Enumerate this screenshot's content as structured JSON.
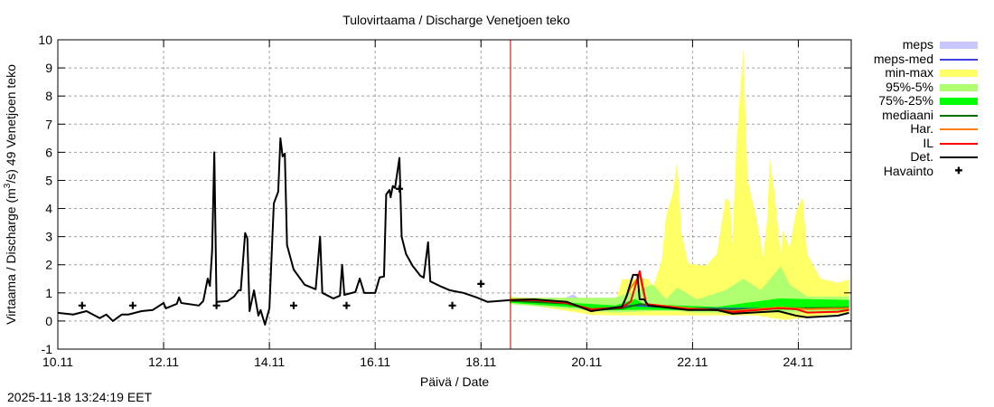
{
  "chart_data": {
    "type": "area",
    "title": "Tulovirtaama / Discharge  Venetjoen teko",
    "xlabel": "Päivä / Date",
    "ylabel": {
      "pre": "Virtaama / Discharge (m",
      "sup": "3",
      "post": "/s)  49 Venetjoen teko"
    },
    "xlim": [
      "2025-11-10 00:00",
      "2025-11-25 00:00"
    ],
    "ylim": [
      -1,
      10
    ],
    "x_ticks": [
      {
        "t": "2025-11-10 00:00",
        "label": "10.11"
      },
      {
        "t": "2025-11-12 00:00",
        "label": "12.11"
      },
      {
        "t": "2025-11-14 00:00",
        "label": "14.11"
      },
      {
        "t": "2025-11-16 00:00",
        "label": "16.11"
      },
      {
        "t": "2025-11-18 00:00",
        "label": "18.11"
      },
      {
        "t": "2025-11-20 00:00",
        "label": "20.11"
      },
      {
        "t": "2025-11-22 00:00",
        "label": "22.11"
      },
      {
        "t": "2025-11-24 00:00",
        "label": "24.11"
      }
    ],
    "y_ticks": [
      -1,
      0,
      1,
      2,
      3,
      4,
      5,
      6,
      7,
      8,
      9,
      10
    ],
    "grid": true,
    "legend_placement": "outside-right",
    "forecast_start": "2025-11-18 13:24",
    "bands": [
      {
        "name": "meps",
        "color": "#c8c8ff",
        "points": [
          [
            "2025-11-18 13:00",
            0.6,
            0.8
          ],
          [
            "2025-11-19 12:00",
            0.55,
            0.75
          ],
          [
            "2025-11-19 18:00",
            0.5,
            0.95
          ],
          [
            "2025-11-20 02:00",
            0.3,
            0.45
          ],
          [
            "2025-11-20 12:00",
            0.3,
            0.65
          ],
          [
            "2025-11-20 20:00",
            0.2,
            0.7
          ],
          [
            "2025-11-21 02:00",
            0.4,
            0.6
          ],
          [
            "2025-11-21 12:00",
            0.4,
            0.55
          ]
        ]
      },
      {
        "name": "min-max",
        "color": "#ffff66",
        "points": [
          [
            "2025-11-18 13:00",
            0.68,
            0.87
          ],
          [
            "2025-11-20 02:00",
            0.22,
            0.6
          ],
          [
            "2025-11-20 13:00",
            0.2,
            0.68
          ],
          [
            "2025-11-20 16:00",
            0.2,
            1.48
          ],
          [
            "2025-11-21 04:00",
            0.2,
            1.51
          ],
          [
            "2025-11-21 06:00",
            0.2,
            1.19
          ],
          [
            "2025-11-21 10:00",
            0.2,
            2.15
          ],
          [
            "2025-11-21 12:00",
            0.2,
            3.76
          ],
          [
            "2025-11-21 15:00",
            0.2,
            4.53
          ],
          [
            "2025-11-21 17:00",
            0.2,
            5.69
          ],
          [
            "2025-11-21 19:00",
            0.2,
            3.11
          ],
          [
            "2025-11-21 22:00",
            0.2,
            2.05
          ],
          [
            "2025-11-22 06:00",
            0.2,
            1.96
          ],
          [
            "2025-11-22 11:00",
            0.2,
            2.38
          ],
          [
            "2025-11-22 15:00",
            0.2,
            4.4
          ],
          [
            "2025-11-22 17:00",
            0.2,
            4.21
          ],
          [
            "2025-11-22 18:00",
            0.2,
            2.7
          ],
          [
            "2025-11-22 20:00",
            0.2,
            6.4
          ],
          [
            "2025-11-22 23:00",
            0.2,
            9.68
          ],
          [
            "2025-11-23 01:00",
            0.2,
            5.0
          ],
          [
            "2025-11-23 05:00",
            0.2,
            3.66
          ],
          [
            "2025-11-23 08:00",
            0.15,
            2.28
          ],
          [
            "2025-11-23 10:00",
            0.15,
            3.66
          ],
          [
            "2025-11-23 11:00",
            0.1,
            5.85
          ],
          [
            "2025-11-23 13:00",
            0.1,
            4.66
          ],
          [
            "2025-11-23 16:00",
            0.05,
            2.38
          ],
          [
            "2025-11-23 17:00",
            0.05,
            3.22
          ],
          [
            "2025-11-23 20:00",
            0.05,
            2.6
          ],
          [
            "2025-11-23 23:00",
            0.1,
            3.9
          ],
          [
            "2025-11-24 02:00",
            0.1,
            4.4
          ],
          [
            "2025-11-24 04:00",
            0.15,
            2.38
          ],
          [
            "2025-11-24 10:00",
            0.2,
            1.51
          ],
          [
            "2025-11-24 18:00",
            0.25,
            1.35
          ],
          [
            "2025-11-24 23:00",
            0.3,
            1.48
          ]
        ]
      },
      {
        "name": "95%-5%",
        "color": "#b0ff70",
        "points": [
          [
            "2025-11-18 13:00",
            0.6,
            0.83
          ],
          [
            "2025-11-20 13:00",
            0.3,
            0.83
          ],
          [
            "2025-11-21 06:00",
            0.35,
            1.3
          ],
          [
            "2025-11-21 12:00",
            0.35,
            0.77
          ],
          [
            "2025-11-21 17:00",
            0.35,
            1.19
          ],
          [
            "2025-11-22 02:00",
            0.3,
            0.77
          ],
          [
            "2025-11-22 15:00",
            0.3,
            1.1
          ],
          [
            "2025-11-22 23:00",
            0.3,
            1.5
          ],
          [
            "2025-11-23 07:00",
            0.3,
            1.1
          ],
          [
            "2025-11-23 16:00",
            0.3,
            1.95
          ],
          [
            "2025-11-23 20:00",
            0.3,
            1.3
          ],
          [
            "2025-11-24 04:00",
            0.3,
            0.87
          ],
          [
            "2025-11-24 23:00",
            0.35,
            0.87
          ]
        ]
      },
      {
        "name": "75%-25%",
        "color": "#00ff00",
        "points": [
          [
            "2025-11-18 13:00",
            0.65,
            0.78
          ],
          [
            "2025-11-20 13:00",
            0.38,
            0.55
          ],
          [
            "2025-11-20 22:00",
            0.4,
            0.78
          ],
          [
            "2025-11-21 02:00",
            0.4,
            0.6
          ],
          [
            "2025-11-22 11:00",
            0.38,
            0.5
          ],
          [
            "2025-11-23 15:00",
            0.4,
            0.8
          ],
          [
            "2025-11-24 23:00",
            0.4,
            0.75
          ]
        ]
      }
    ],
    "series": [
      {
        "name": "meps-med",
        "color": "#4040e0",
        "width": 1.5,
        "points": [
          [
            "2025-11-18 13:00",
            0.74
          ],
          [
            "2025-11-19 15:00",
            0.65
          ],
          [
            "2025-11-20 02:00",
            0.4
          ],
          [
            "2025-11-20 20:00",
            0.55
          ],
          [
            "2025-11-21 22:00",
            0.45
          ],
          [
            "2025-11-23 15:00",
            0.44
          ],
          [
            "2025-11-24 23:00",
            0.46
          ]
        ]
      },
      {
        "name": "mediaani",
        "color": "#007000",
        "width": 2,
        "points": [
          [
            "2025-11-18 13:00",
            0.72
          ],
          [
            "2025-11-19 15:00",
            0.62
          ],
          [
            "2025-11-20 02:00",
            0.38
          ],
          [
            "2025-11-20 16:00",
            0.45
          ],
          [
            "2025-11-21 00:00",
            0.6
          ],
          [
            "2025-11-21 22:00",
            0.45
          ],
          [
            "2025-11-22 18:00",
            0.4
          ],
          [
            "2025-11-23 15:00",
            0.45
          ],
          [
            "2025-11-24 23:00",
            0.47
          ]
        ]
      },
      {
        "name": "Har.",
        "color": "#ff8000",
        "width": 2,
        "points": [
          [
            "2025-11-18 13:00",
            0.76
          ],
          [
            "2025-11-19 00:00",
            0.77
          ],
          [
            "2025-11-19 15:00",
            0.64
          ],
          [
            "2025-11-20 02:00",
            0.38
          ],
          [
            "2025-11-20 16:00",
            0.5
          ],
          [
            "2025-11-20 20:00",
            1.2
          ],
          [
            "2025-11-21 00:00",
            1.6
          ],
          [
            "2025-11-21 03:00",
            0.6
          ],
          [
            "2025-11-21 22:00",
            0.45
          ],
          [
            "2025-11-22 18:00",
            0.35
          ],
          [
            "2025-11-23 15:00",
            0.48
          ],
          [
            "2025-11-24 04:00",
            0.42
          ],
          [
            "2025-11-24 23:00",
            0.45
          ]
        ]
      },
      {
        "name": "IL",
        "color": "#ff0000",
        "width": 2,
        "points": [
          [
            "2025-11-18 13:00",
            0.74
          ],
          [
            "2025-11-19 00:00",
            0.74
          ],
          [
            "2025-11-19 15:00",
            0.64
          ],
          [
            "2025-11-20 02:00",
            0.42
          ],
          [
            "2025-11-20 16:00",
            0.48
          ],
          [
            "2025-11-20 20:00",
            0.7
          ],
          [
            "2025-11-21 00:00",
            1.77
          ],
          [
            "2025-11-21 03:00",
            0.6
          ],
          [
            "2025-11-21 22:00",
            0.42
          ],
          [
            "2025-11-22 11:00",
            0.39
          ],
          [
            "2025-11-22 18:00",
            0.32
          ],
          [
            "2025-11-23 15:00",
            0.45
          ],
          [
            "2025-11-23 23:00",
            0.42
          ],
          [
            "2025-11-24 04:00",
            0.3
          ],
          [
            "2025-11-24 18:00",
            0.33
          ],
          [
            "2025-11-24 23:00",
            0.39
          ]
        ]
      },
      {
        "name": "Det.",
        "color": "#000000",
        "width": 2,
        "points": [
          [
            "2025-11-10 00:00",
            0.29
          ],
          [
            "2025-11-10 07:00",
            0.23
          ],
          [
            "2025-11-10 13:00",
            0.35
          ],
          [
            "2025-11-10 19:00",
            0.1
          ],
          [
            "2025-11-10 22:00",
            0.23
          ],
          [
            "2025-11-11 01:00",
            0.0
          ],
          [
            "2025-11-11 05:00",
            0.23
          ],
          [
            "2025-11-11 08:00",
            0.23
          ],
          [
            "2025-11-11 14:00",
            0.35
          ],
          [
            "2025-11-11 19:00",
            0.39
          ],
          [
            "2025-11-12 00:00",
            0.64
          ],
          [
            "2025-11-12 01:00",
            0.45
          ],
          [
            "2025-11-12 06:00",
            0.61
          ],
          [
            "2025-11-12 07:00",
            0.84
          ],
          [
            "2025-11-12 08:00",
            0.64
          ],
          [
            "2025-11-12 16:00",
            0.55
          ],
          [
            "2025-11-12 18:00",
            0.71
          ],
          [
            "2025-11-12 20:00",
            1.51
          ],
          [
            "2025-11-12 21:00",
            1.25
          ],
          [
            "2025-11-12 22:00",
            2.48
          ],
          [
            "2025-11-12 23:00",
            6.0
          ],
          [
            "2025-11-13 00:00",
            0.68
          ],
          [
            "2025-11-13 05:00",
            0.71
          ],
          [
            "2025-11-13 08:00",
            0.87
          ],
          [
            "2025-11-13 10:00",
            1.09
          ],
          [
            "2025-11-13 11:00",
            1.09
          ],
          [
            "2025-11-13 13:00",
            3.13
          ],
          [
            "2025-11-13 14:00",
            2.93
          ],
          [
            "2025-11-13 15:00",
            0.35
          ],
          [
            "2025-11-13 17:00",
            1.09
          ],
          [
            "2025-11-13 19:00",
            0.19
          ],
          [
            "2025-11-13 20:00",
            0.39
          ],
          [
            "2025-11-13 22:00",
            -0.13
          ],
          [
            "2025-11-14 00:00",
            0.45
          ],
          [
            "2025-11-14 02:00",
            4.18
          ],
          [
            "2025-11-14 04:00",
            4.6
          ],
          [
            "2025-11-14 05:00",
            6.5
          ],
          [
            "2025-11-14 06:00",
            5.85
          ],
          [
            "2025-11-14 07:00",
            5.95
          ],
          [
            "2025-11-14 08:00",
            2.7
          ],
          [
            "2025-11-14 11:00",
            1.83
          ],
          [
            "2025-11-14 16:00",
            1.29
          ],
          [
            "2025-11-14 21:00",
            1.13
          ],
          [
            "2025-11-14 23:00",
            3.0
          ],
          [
            "2025-11-15 00:00",
            1.0
          ],
          [
            "2025-11-15 05:00",
            0.8
          ],
          [
            "2025-11-15 08:00",
            0.9
          ],
          [
            "2025-11-15 09:00",
            2.0
          ],
          [
            "2025-11-15 10:00",
            0.93
          ],
          [
            "2025-11-15 15:00",
            1.03
          ],
          [
            "2025-11-15 17:00",
            1.51
          ],
          [
            "2025-11-15 19:00",
            1.0
          ],
          [
            "2025-11-16 00:00",
            1.0
          ],
          [
            "2025-11-16 02:00",
            1.55
          ],
          [
            "2025-11-16 04:00",
            1.58
          ],
          [
            "2025-11-16 05:00",
            4.5
          ],
          [
            "2025-11-16 06:30",
            4.66
          ],
          [
            "2025-11-16 07:00",
            4.4
          ],
          [
            "2025-11-16 08:00",
            4.8
          ],
          [
            "2025-11-16 09:00",
            4.73
          ],
          [
            "2025-11-16 11:00",
            5.8
          ],
          [
            "2025-11-16 12:00",
            3.0
          ],
          [
            "2025-11-16 14:00",
            2.38
          ],
          [
            "2025-11-16 17:00",
            1.96
          ],
          [
            "2025-11-16 20:30",
            1.61
          ],
          [
            "2025-11-16 22:00",
            1.54
          ],
          [
            "2025-11-17 00:00",
            2.8
          ],
          [
            "2025-11-17 01:00",
            1.41
          ],
          [
            "2025-11-17 06:00",
            1.22
          ],
          [
            "2025-11-17 10:00",
            1.09
          ],
          [
            "2025-11-17 16:00",
            1.0
          ],
          [
            "2025-11-17 22:00",
            0.84
          ],
          [
            "2025-11-18 03:00",
            0.68
          ],
          [
            "2025-11-18 13:00",
            0.74
          ],
          [
            "2025-11-19 00:00",
            0.77
          ],
          [
            "2025-11-19 15:00",
            0.68
          ],
          [
            "2025-11-20 02:00",
            0.35
          ],
          [
            "2025-11-20 16:00",
            0.51
          ],
          [
            "2025-11-20 18:00",
            0.87
          ],
          [
            "2025-11-20 21:00",
            1.64
          ],
          [
            "2025-11-20 23:00",
            1.64
          ],
          [
            "2025-11-21 00:00",
            0.77
          ],
          [
            "2025-11-21 02:00",
            0.77
          ],
          [
            "2025-11-21 04:00",
            0.55
          ],
          [
            "2025-11-21 22:00",
            0.39
          ],
          [
            "2025-11-22 11:00",
            0.39
          ],
          [
            "2025-11-22 18:00",
            0.26
          ],
          [
            "2025-11-23 15:00",
            0.35
          ],
          [
            "2025-11-23 23:00",
            0.19
          ],
          [
            "2025-11-24 04:00",
            0.13
          ],
          [
            "2025-11-24 18:00",
            0.19
          ],
          [
            "2025-11-24 23:00",
            0.29
          ]
        ]
      }
    ],
    "observations": {
      "name": "Havainto",
      "points": [
        [
          "2025-11-10 11:00",
          0.55
        ],
        [
          "2025-11-11 10:00",
          0.55
        ],
        [
          "2025-11-13 00:00",
          0.55
        ],
        [
          "2025-11-14 11:00",
          0.55
        ],
        [
          "2025-11-15 11:00",
          0.55
        ],
        [
          "2025-11-16 11:00",
          4.7
        ],
        [
          "2025-11-17 11:00",
          0.55
        ],
        [
          "2025-11-18 00:00",
          1.32
        ]
      ]
    }
  },
  "legend": [
    {
      "label": "meps",
      "color": "#c8c8ff",
      "kind": "band"
    },
    {
      "label": "meps-med",
      "color": "#4040e0",
      "kind": "line"
    },
    {
      "label": "min-max",
      "color": "#ffff66",
      "kind": "band"
    },
    {
      "label": "95%-5%",
      "color": "#b0ff70",
      "kind": "band"
    },
    {
      "label": "75%-25%",
      "color": "#00ff00",
      "kind": "band"
    },
    {
      "label": "mediaani",
      "color": "#007000",
      "kind": "line"
    },
    {
      "label": "Har.",
      "color": "#ff8000",
      "kind": "line"
    },
    {
      "label": "IL",
      "color": "#ff0000",
      "kind": "line"
    },
    {
      "label": "Det.",
      "color": "#000000",
      "kind": "line"
    },
    {
      "label": "Havainto",
      "color": "#000000",
      "kind": "point"
    }
  ],
  "timestamp": "2025-11-18 13:24:19 EET"
}
